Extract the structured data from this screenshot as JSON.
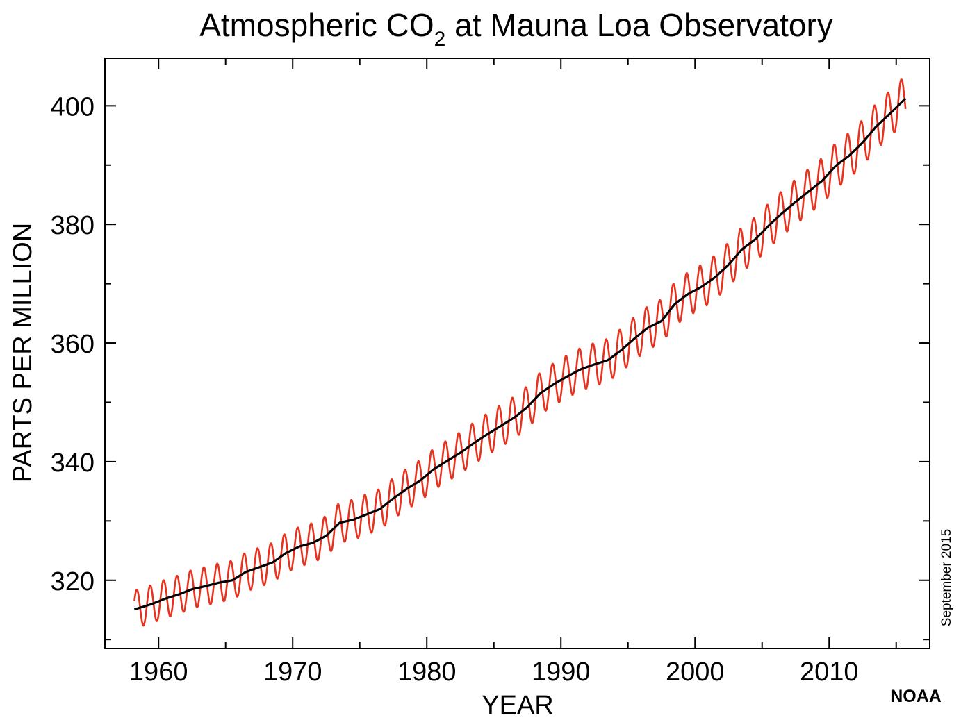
{
  "chart_data": {
    "type": "line",
    "title": {
      "prefix": "Atmospheric CO",
      "subscript": "2",
      "suffix": " at Mauna Loa Observatory"
    },
    "xlabel": "YEAR",
    "ylabel": "PARTS PER MILLION",
    "xlim": [
      1956.0,
      2017.5
    ],
    "ylim": [
      308.5,
      408.0
    ],
    "x_ticks": [
      1960,
      1970,
      1980,
      1990,
      2000,
      2010
    ],
    "x_tick_labels": [
      "1960",
      "1970",
      "1980",
      "1990",
      "2000",
      "2010"
    ],
    "y_ticks": [
      320,
      340,
      360,
      380,
      400
    ],
    "y_tick_labels": [
      "320",
      "340",
      "360",
      "380",
      "400"
    ],
    "grid": false,
    "legend": "none",
    "series": [
      {
        "style": "monthly",
        "color": "#e8321e",
        "seasonal_amplitude": 3.2,
        "seasonal_peak_month": "May",
        "x_range": [
          1958.2,
          2015.7
        ]
      },
      {
        "style": "trend",
        "color": "#000000",
        "x": [
          1958,
          1959,
          1960,
          1961,
          1962,
          1963,
          1964,
          1965,
          1966,
          1967,
          1968,
          1969,
          1970,
          1971,
          1972,
          1973,
          1974,
          1975,
          1976,
          1977,
          1978,
          1979,
          1980,
          1981,
          1982,
          1983,
          1984,
          1985,
          1986,
          1987,
          1988,
          1989,
          1990,
          1991,
          1992,
          1993,
          1994,
          1995,
          1996,
          1997,
          1998,
          1999,
          2000,
          2001,
          2002,
          2003,
          2004,
          2005,
          2006,
          2007,
          2008,
          2009,
          2010,
          2011,
          2012,
          2013,
          2014,
          2015
        ],
        "y": [
          315.3,
          316.0,
          316.9,
          317.6,
          318.5,
          319.0,
          319.6,
          320.0,
          321.4,
          322.2,
          323.0,
          324.6,
          325.7,
          326.3,
          327.5,
          329.7,
          330.2,
          331.1,
          332.0,
          333.8,
          335.4,
          336.8,
          338.7,
          340.1,
          341.5,
          343.1,
          344.6,
          346.0,
          347.4,
          349.2,
          351.6,
          353.1,
          354.4,
          355.6,
          356.4,
          357.1,
          358.8,
          360.8,
          362.6,
          363.7,
          366.6,
          368.3,
          369.5,
          371.1,
          373.2,
          375.8,
          377.5,
          379.8,
          381.9,
          383.8,
          385.6,
          387.4,
          389.9,
          391.6,
          393.8,
          396.5,
          398.6,
          400.8
        ]
      }
    ]
  },
  "annotations": {
    "date_note": "September 2015",
    "source": "NOAA"
  }
}
